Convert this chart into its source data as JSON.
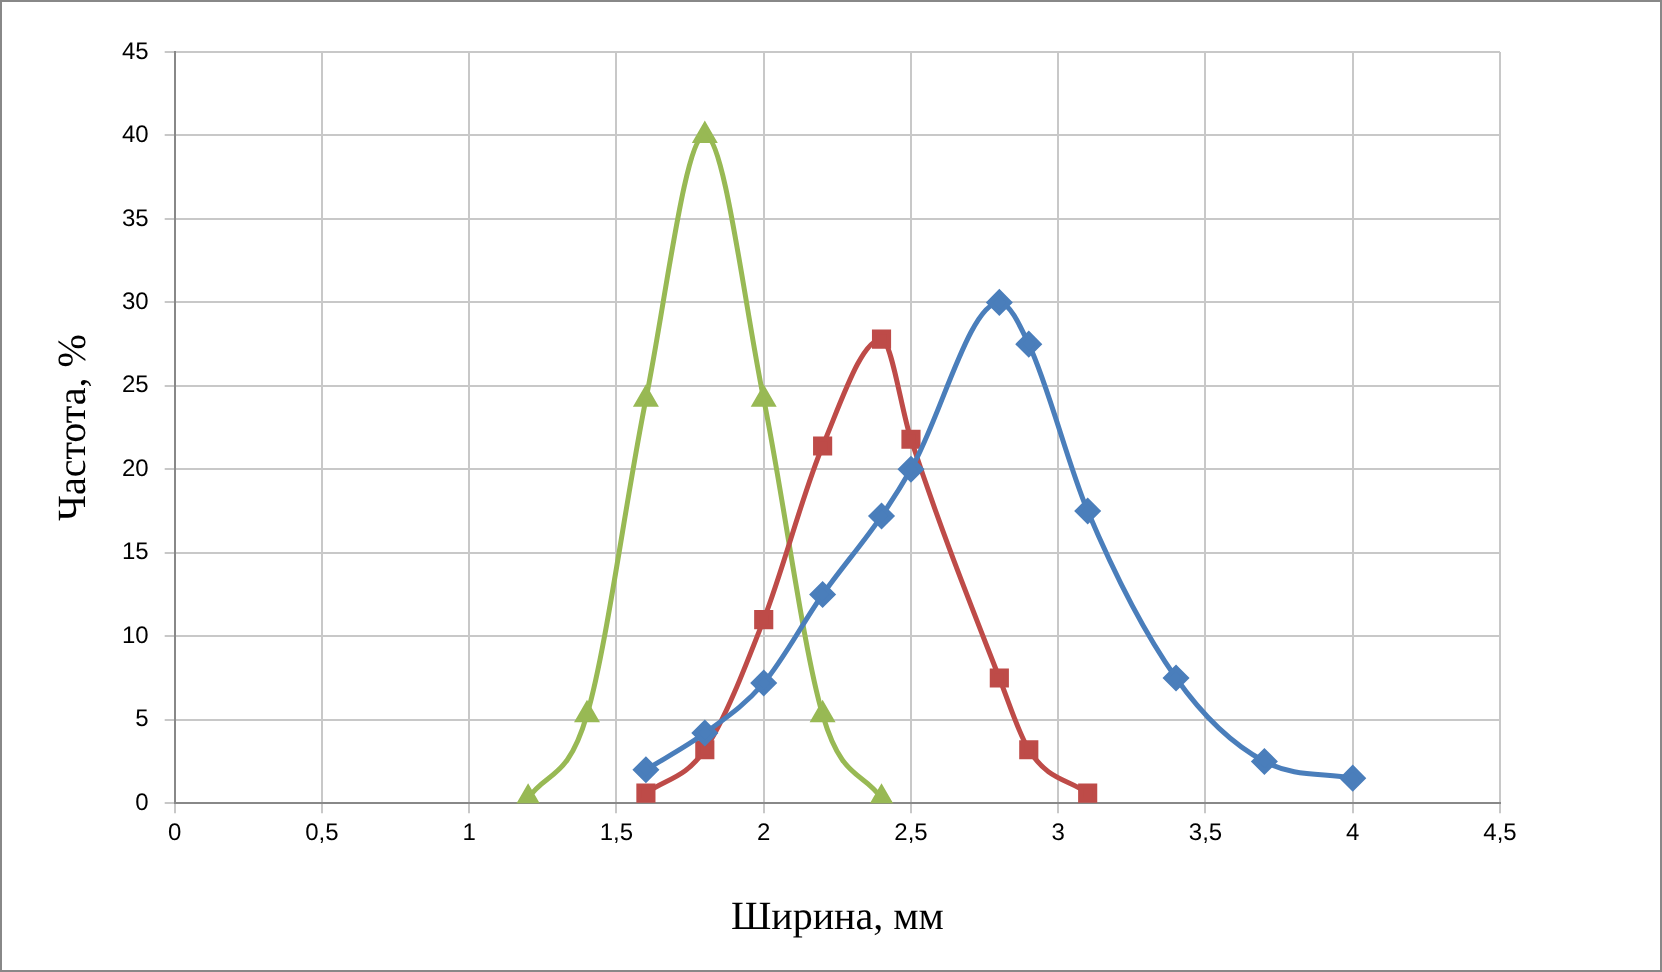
{
  "chart_data": {
    "type": "line",
    "xlabel": "Ширина, мм",
    "ylabel": "Частота, %",
    "xlim": [
      0,
      4.5
    ],
    "xticks": [
      0,
      {
        "value": 0.5,
        "label": "0,5"
      },
      1,
      {
        "value": 1.5,
        "label": "1,5"
      },
      2,
      {
        "value": 2.5,
        "label": "2,5"
      },
      3,
      {
        "value": 3.5,
        "label": "3,5"
      },
      4,
      {
        "value": 4.5,
        "label": "4,5"
      }
    ],
    "ylim": [
      0,
      45
    ],
    "yticks": [
      0,
      5,
      10,
      15,
      20,
      25,
      30,
      35,
      40,
      45
    ],
    "grid": true,
    "legend": false,
    "series": [
      {
        "color": "#4a7ebb",
        "marker": "diamond",
        "x": [
          1.6,
          1.8,
          2,
          2.2,
          2.4,
          2.5,
          2.8,
          2.9,
          3.1,
          3.4,
          3.7,
          4
        ],
        "values": [
          2,
          4.2,
          7.2,
          12.5,
          17.2,
          20,
          30,
          27.5,
          17.5,
          7.5,
          2.5,
          1.5
        ]
      },
      {
        "color": "#be4b48",
        "marker": "square",
        "x": [
          1.6,
          1.8,
          2,
          2.2,
          2.4,
          2.5,
          2.8,
          2.9,
          3.1
        ],
        "values": [
          0.6,
          3.2,
          11,
          21.4,
          27.8,
          21.8,
          7.5,
          3.2,
          0.6
        ]
      },
      {
        "color": "#98b954",
        "marker": "triangle",
        "x": [
          1.2,
          1.4,
          1.6,
          1.8,
          2,
          2.2,
          2.4
        ],
        "values": [
          0.3,
          5.3,
          24.2,
          40,
          24.2,
          5.3,
          0.3
        ]
      }
    ]
  }
}
